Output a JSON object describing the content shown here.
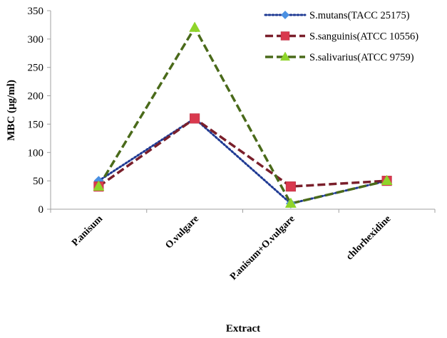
{
  "chart_data": {
    "type": "line",
    "title": "",
    "xlabel": "Extract",
    "ylabel": "MBC (µg/ml)",
    "ylim": [
      0,
      350
    ],
    "yticks": [
      0,
      50,
      100,
      150,
      200,
      250,
      300,
      350
    ],
    "grid": false,
    "legend_position": "top-right",
    "categories": [
      "P.anisum",
      "O.vulgare",
      "P.anisum+O.vulgare",
      "chlorhexidine"
    ],
    "series": [
      {
        "name": "S.mutans(TACC 25175)",
        "values": [
          50,
          160,
          10,
          50
        ],
        "color": "#1f3a93",
        "marker": "diamond",
        "marker_color": "#4a90e2",
        "line_style": "dotted"
      },
      {
        "name": "S.sanguinis(ATCC 10556)",
        "values": [
          40,
          160,
          40,
          50
        ],
        "color": "#7a1f2b",
        "marker": "square",
        "marker_color": "#d9394e",
        "line_style": "dashed"
      },
      {
        "name": "S.salivarius(ATCC 9759)",
        "values": [
          40,
          320,
          10,
          50
        ],
        "color": "#4a6a1a",
        "marker": "triangle",
        "marker_color": "#8fd42a",
        "line_style": "dashed"
      }
    ]
  }
}
